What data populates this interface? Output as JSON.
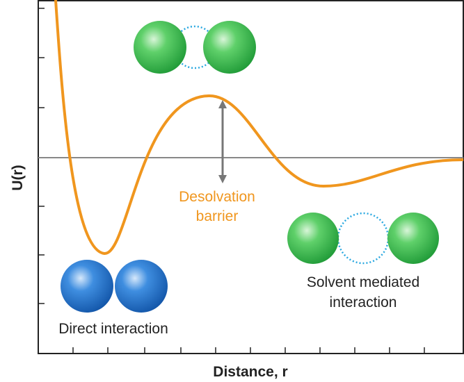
{
  "axes": {
    "x_label": "Distance, r",
    "y_label": "U(r)"
  },
  "annotations": {
    "desolvation": [
      "Desolvation",
      "barrier"
    ],
    "solvent": [
      "Solvent mediated",
      "interaction"
    ],
    "direct": "Direct interaction"
  }
}
